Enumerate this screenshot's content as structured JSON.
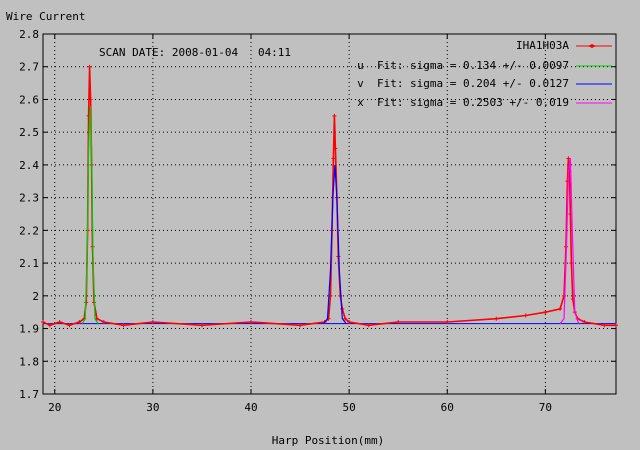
{
  "chart_data": {
    "type": "line",
    "title": "",
    "ylabel": "Wire Current",
    "xlabel": "Harp Position(mm)",
    "xlim": [
      18.8,
      77.2
    ],
    "ylim": [
      1.7,
      2.8
    ],
    "xticks": [
      20,
      30,
      40,
      50,
      60,
      70
    ],
    "yticks": [
      1.7,
      1.8,
      1.9,
      2.0,
      2.1,
      2.2,
      2.3,
      2.4,
      2.5,
      2.6,
      2.7,
      2.8
    ],
    "ytick_labels": [
      "1.7",
      "1.8",
      "1.9",
      "2",
      "2.1",
      "2.2",
      "2.3",
      "2.4",
      "2.5",
      "2.6",
      "2.7",
      "2.8"
    ],
    "grid": true,
    "legend_position": "top-right",
    "scan_date_text": "SCAN DATE: 2008-01-04   04:11",
    "baseline": 1.915,
    "series": [
      {
        "name": "IHA1H03A",
        "color": "#ff0000",
        "style": "line+points",
        "x": [
          18.8,
          19.5,
          20.5,
          21.5,
          22.5,
          23.0,
          23.2,
          23.35,
          23.45,
          23.55,
          23.65,
          23.75,
          23.85,
          24.0,
          24.3,
          25.0,
          27.0,
          30.0,
          35.0,
          40.0,
          45.0,
          47.5,
          47.9,
          48.1,
          48.25,
          48.4,
          48.5,
          48.6,
          48.75,
          48.9,
          49.1,
          49.3,
          49.6,
          50.0,
          52.0,
          55.0,
          60.0,
          65.0,
          68.0,
          70.0,
          71.5,
          71.9,
          72.1,
          72.25,
          72.35,
          72.45,
          72.55,
          72.65,
          72.8,
          73.0,
          73.3,
          74.0,
          76.0,
          77.2
        ],
        "y": [
          1.92,
          1.91,
          1.92,
          1.91,
          1.92,
          1.93,
          1.98,
          2.2,
          2.55,
          2.7,
          2.6,
          2.4,
          2.15,
          1.98,
          1.93,
          1.92,
          1.91,
          1.92,
          1.91,
          1.92,
          1.91,
          1.92,
          1.93,
          2.0,
          2.2,
          2.42,
          2.55,
          2.45,
          2.3,
          2.12,
          2.0,
          1.96,
          1.93,
          1.92,
          1.91,
          1.92,
          1.92,
          1.93,
          1.94,
          1.95,
          1.96,
          2.0,
          2.15,
          2.35,
          2.42,
          2.38,
          2.25,
          2.1,
          1.99,
          1.95,
          1.93,
          1.92,
          1.91,
          1.91
        ]
      },
      {
        "name": "u  Fit: sigma = 0.134 +/- 0.0097",
        "color": "#00cc00",
        "style": "line",
        "x": [
          22.8,
          23.1,
          23.3,
          23.45,
          23.6,
          23.75,
          23.9,
          24.1,
          24.4
        ],
        "y": [
          1.915,
          1.93,
          2.12,
          2.45,
          2.58,
          2.45,
          2.12,
          1.93,
          1.915
        ]
      },
      {
        "name": "v  Fit: sigma = 0.204 +/- 0.0127",
        "color": "#0000ff",
        "style": "line",
        "x": [
          47.4,
          47.8,
          48.1,
          48.35,
          48.55,
          48.75,
          49.0,
          49.3,
          49.7
        ],
        "y": [
          1.915,
          1.93,
          2.08,
          2.3,
          2.4,
          2.3,
          2.08,
          1.93,
          1.915
        ]
      },
      {
        "name": "x  Fit: sigma = 0.2503 +/- 0.019",
        "color": "#ff00ff",
        "style": "line",
        "x": [
          71.5,
          71.9,
          72.15,
          72.35,
          72.55,
          72.75,
          73.0,
          73.4
        ],
        "y": [
          1.915,
          1.93,
          2.15,
          2.38,
          2.42,
          2.2,
          1.95,
          1.915
        ]
      }
    ]
  }
}
